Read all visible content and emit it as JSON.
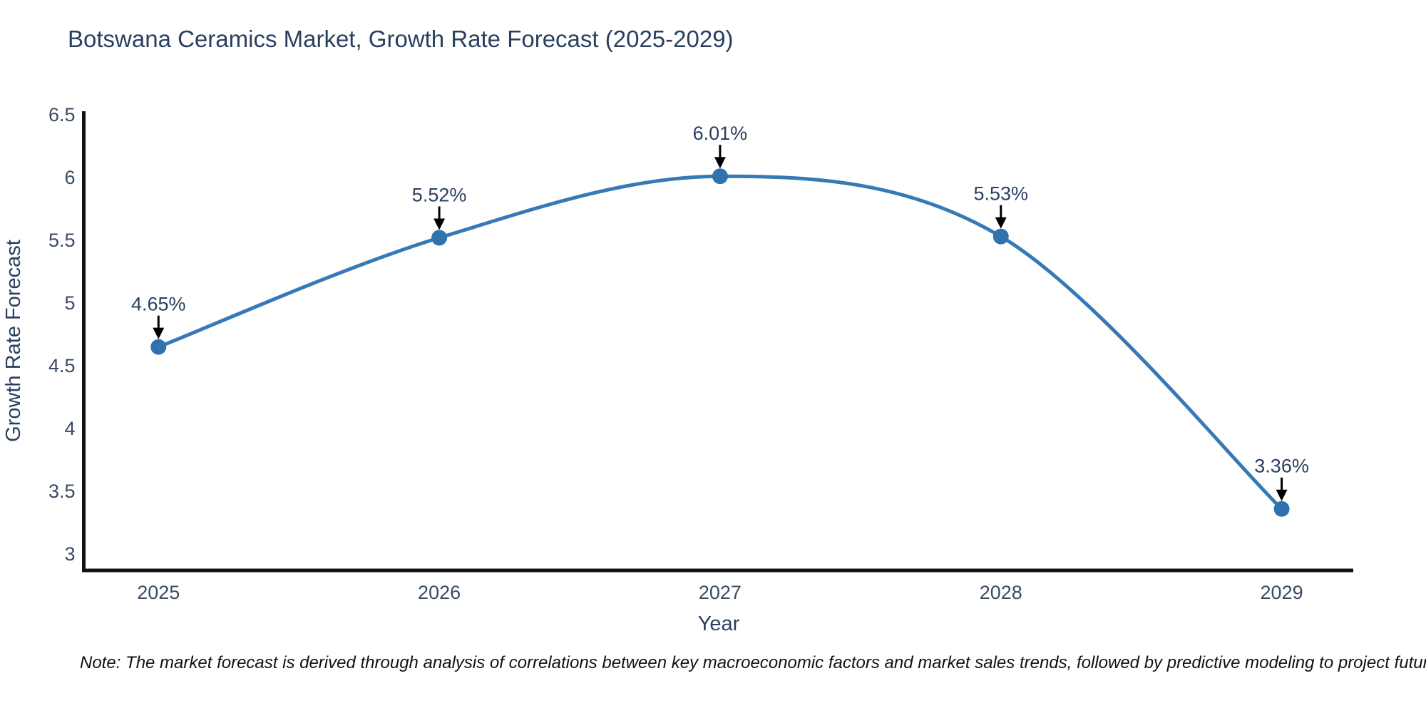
{
  "title": "Botswana Ceramics Market, Growth Rate Forecast (2025-2029)",
  "note": "Note: The market forecast is derived through analysis of correlations between key macroeconomic factors and market sales trends, followed by predictive modeling to project future sales",
  "chart_data": {
    "type": "line",
    "line_shape": "spline",
    "title": "Botswana Ceramics Market, Growth Rate Forecast (2025-2029)",
    "xlabel": "Year",
    "ylabel": "Growth Rate Forecast",
    "x": [
      2025,
      2026,
      2027,
      2028,
      2029
    ],
    "series": [
      {
        "name": "Growth Rate Forecast",
        "values": [
          4.65,
          5.52,
          6.01,
          5.53,
          3.36
        ],
        "point_labels": [
          "4.65%",
          "5.52%",
          "6.01%",
          "5.53%",
          "3.36%"
        ]
      }
    ],
    "xticklabels": [
      "2025",
      "2026",
      "2027",
      "2028",
      "2029"
    ],
    "yticks": [
      3,
      3.5,
      4,
      4.5,
      5,
      5.5,
      6,
      6.5
    ],
    "xlim": [
      2024.734,
      2029.255
    ],
    "ylim": [
      2.87,
      6.528
    ],
    "grid": false,
    "legend": "none",
    "colors": {
      "line": "#3779b7",
      "marker": "#2f72ae",
      "axis_line": "#111111",
      "tick_text": "#3b4a63",
      "title_text": "#2a3f5f",
      "annotation_text": "#2a3f5f",
      "annotation_arrow": "#000000",
      "note_text": "#111111",
      "background": "#ffffff"
    }
  }
}
